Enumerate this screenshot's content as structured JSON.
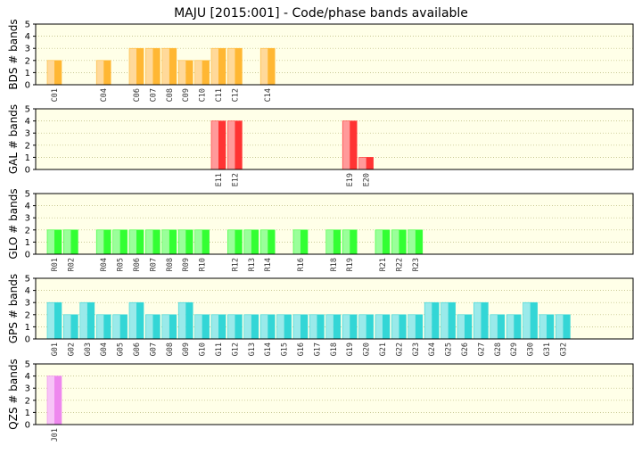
{
  "chart_data": {
    "title": "MAJU [2015:001] - Code/phase bands available",
    "type": "bar",
    "ylim": [
      0,
      5
    ],
    "yticks": [
      0,
      1,
      2,
      3,
      4,
      5
    ],
    "grid": true,
    "slot_count": 37,
    "panels": [
      {
        "name": "BDS",
        "ylabel": "BDS # bands",
        "color": "#ffb733",
        "light": "#ffd99a",
        "bars": [
          {
            "label": "C01",
            "slot": 0,
            "value": 2
          },
          {
            "label": "C04",
            "slot": 3,
            "value": 2
          },
          {
            "label": "C06",
            "slot": 5,
            "value": 3
          },
          {
            "label": "C07",
            "slot": 6,
            "value": 3
          },
          {
            "label": "C08",
            "slot": 7,
            "value": 3
          },
          {
            "label": "C09",
            "slot": 8,
            "value": 2
          },
          {
            "label": "C10",
            "slot": 9,
            "value": 2
          },
          {
            "label": "C11",
            "slot": 10,
            "value": 3
          },
          {
            "label": "C12",
            "slot": 11,
            "value": 3
          },
          {
            "label": "C14",
            "slot": 13,
            "value": 3
          }
        ]
      },
      {
        "name": "GAL",
        "ylabel": "GAL # bands",
        "color": "#ff3333",
        "light": "#ff9a9a",
        "bars": [
          {
            "label": "E11",
            "slot": 10,
            "value": 4
          },
          {
            "label": "E12",
            "slot": 11,
            "value": 4
          },
          {
            "label": "E19",
            "slot": 18,
            "value": 4
          },
          {
            "label": "E20",
            "slot": 19,
            "value": 1
          }
        ]
      },
      {
        "name": "GLO",
        "ylabel": "GLO # bands",
        "color": "#33ff33",
        "light": "#9aff9a",
        "bars": [
          {
            "label": "R01",
            "slot": 0,
            "value": 2
          },
          {
            "label": "R02",
            "slot": 1,
            "value": 2
          },
          {
            "label": "R04",
            "slot": 3,
            "value": 2
          },
          {
            "label": "R05",
            "slot": 4,
            "value": 2
          },
          {
            "label": "R06",
            "slot": 5,
            "value": 2
          },
          {
            "label": "R07",
            "slot": 6,
            "value": 2
          },
          {
            "label": "R08",
            "slot": 7,
            "value": 2
          },
          {
            "label": "R09",
            "slot": 8,
            "value": 2
          },
          {
            "label": "R10",
            "slot": 9,
            "value": 2
          },
          {
            "label": "R12",
            "slot": 11,
            "value": 2
          },
          {
            "label": "R13",
            "slot": 12,
            "value": 2
          },
          {
            "label": "R14",
            "slot": 13,
            "value": 2
          },
          {
            "label": "R16",
            "slot": 15,
            "value": 2
          },
          {
            "label": "R18",
            "slot": 17,
            "value": 2
          },
          {
            "label": "R19",
            "slot": 18,
            "value": 2
          },
          {
            "label": "R21",
            "slot": 20,
            "value": 2
          },
          {
            "label": "R22",
            "slot": 21,
            "value": 2
          },
          {
            "label": "R23",
            "slot": 22,
            "value": 2
          }
        ]
      },
      {
        "name": "GPS",
        "ylabel": "GPS # bands",
        "color": "#33d6d6",
        "light": "#9aeaea",
        "bars": [
          {
            "label": "G01",
            "slot": 0,
            "value": 3
          },
          {
            "label": "G02",
            "slot": 1,
            "value": 2
          },
          {
            "label": "G03",
            "slot": 2,
            "value": 3
          },
          {
            "label": "G04",
            "slot": 3,
            "value": 2
          },
          {
            "label": "G05",
            "slot": 4,
            "value": 2
          },
          {
            "label": "G06",
            "slot": 5,
            "value": 3
          },
          {
            "label": "G07",
            "slot": 6,
            "value": 2
          },
          {
            "label": "G08",
            "slot": 7,
            "value": 2
          },
          {
            "label": "G09",
            "slot": 8,
            "value": 3
          },
          {
            "label": "G10",
            "slot": 9,
            "value": 2
          },
          {
            "label": "G11",
            "slot": 10,
            "value": 2
          },
          {
            "label": "G12",
            "slot": 11,
            "value": 2
          },
          {
            "label": "G13",
            "slot": 12,
            "value": 2
          },
          {
            "label": "G14",
            "slot": 13,
            "value": 2
          },
          {
            "label": "G15",
            "slot": 14,
            "value": 2
          },
          {
            "label": "G16",
            "slot": 15,
            "value": 2
          },
          {
            "label": "G17",
            "slot": 16,
            "value": 2
          },
          {
            "label": "G18",
            "slot": 17,
            "value": 2
          },
          {
            "label": "G19",
            "slot": 18,
            "value": 2
          },
          {
            "label": "G20",
            "slot": 19,
            "value": 2
          },
          {
            "label": "G21",
            "slot": 20,
            "value": 2
          },
          {
            "label": "G22",
            "slot": 21,
            "value": 2
          },
          {
            "label": "G23",
            "slot": 22,
            "value": 2
          },
          {
            "label": "G24",
            "slot": 23,
            "value": 3
          },
          {
            "label": "G25",
            "slot": 24,
            "value": 3
          },
          {
            "label": "G26",
            "slot": 25,
            "value": 2
          },
          {
            "label": "G27",
            "slot": 26,
            "value": 3
          },
          {
            "label": "G28",
            "slot": 27,
            "value": 2
          },
          {
            "label": "G29",
            "slot": 28,
            "value": 2
          },
          {
            "label": "G30",
            "slot": 29,
            "value": 3
          },
          {
            "label": "G31",
            "slot": 30,
            "value": 2
          },
          {
            "label": "G32",
            "slot": 31,
            "value": 2
          }
        ]
      },
      {
        "name": "QZS",
        "ylabel": "QZS # bands",
        "color": "#ee88ee",
        "light": "#f7c4f7",
        "bars": [
          {
            "label": "J01",
            "slot": 0,
            "value": 4
          }
        ]
      }
    ]
  }
}
